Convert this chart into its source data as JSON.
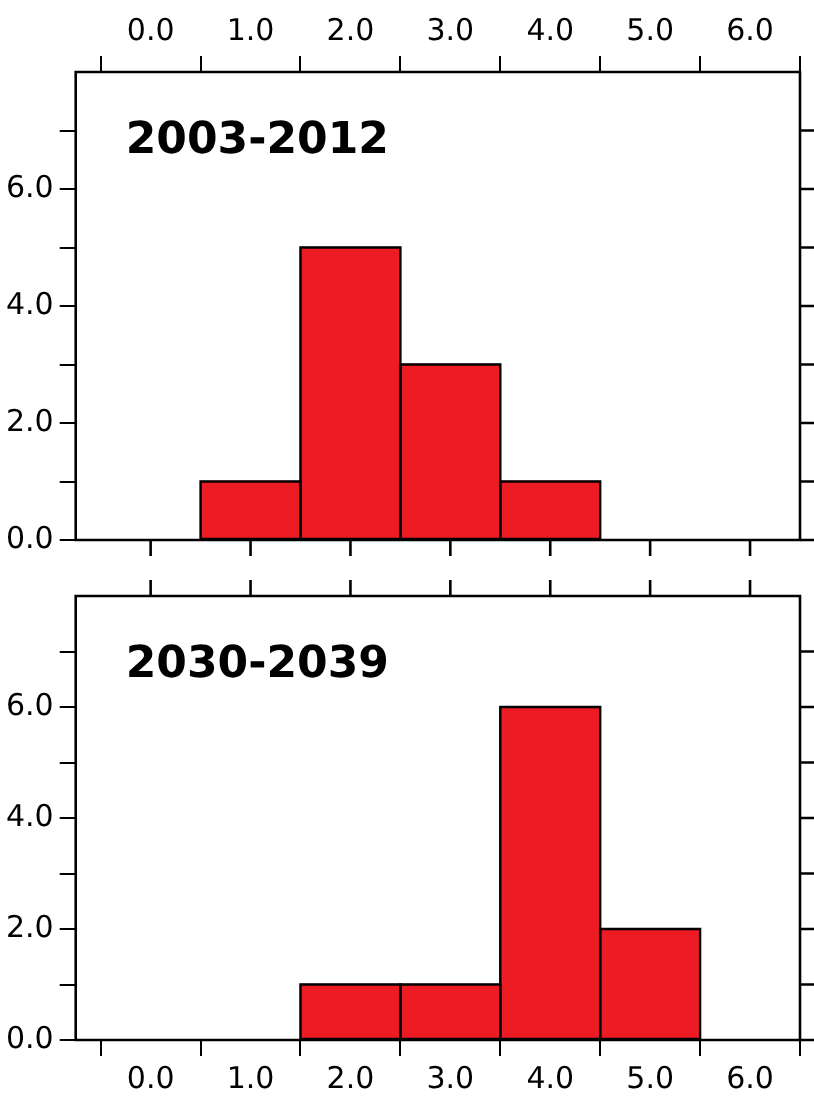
{
  "chart_data": [
    {
      "type": "histogram",
      "title": "2003-2012",
      "bins": [
        0.5,
        1.5,
        2.5,
        3.5,
        4.5
      ],
      "values": [
        1,
        5,
        3,
        1
      ],
      "color": "#ed1c24",
      "xlim": [
        -0.75,
        6.5
      ],
      "xticks": [
        {
          "value": 0,
          "label": "0.0"
        },
        {
          "value": 1,
          "label": "1.0"
        },
        {
          "value": 2,
          "label": "2.0"
        },
        {
          "value": 3,
          "label": "3.0"
        },
        {
          "value": 4,
          "label": "4.0"
        },
        {
          "value": 5,
          "label": "5.0"
        },
        {
          "value": 6,
          "label": "6.0"
        }
      ],
      "ylim": [
        0,
        8
      ],
      "yticks": [
        {
          "value": 0,
          "label": "0.0"
        },
        {
          "value": 1,
          "label": null
        },
        {
          "value": 2,
          "label": "2.0"
        },
        {
          "value": 3,
          "label": null
        },
        {
          "value": 4,
          "label": "4.0"
        },
        {
          "value": 5,
          "label": null
        },
        {
          "value": 6,
          "label": "6.0"
        },
        {
          "value": 7,
          "label": null
        }
      ],
      "grid": false,
      "legend": false
    },
    {
      "type": "histogram",
      "title": "2030-2039",
      "bins": [
        1.5,
        2.5,
        3.5,
        4.5,
        5.5
      ],
      "values": [
        1,
        1,
        6,
        2
      ],
      "color": "#ed1c24",
      "xlim": [
        -0.75,
        6.5
      ],
      "xticks": [
        {
          "value": 0,
          "label": "0.0"
        },
        {
          "value": 1,
          "label": "1.0"
        },
        {
          "value": 2,
          "label": "2.0"
        },
        {
          "value": 3,
          "label": "3.0"
        },
        {
          "value": 4,
          "label": "4.0"
        },
        {
          "value": 5,
          "label": "5.0"
        },
        {
          "value": 6,
          "label": "6.0"
        }
      ],
      "ylim": [
        0,
        8
      ],
      "yticks": [
        {
          "value": 0,
          "label": "0.0"
        },
        {
          "value": 1,
          "label": null
        },
        {
          "value": 2,
          "label": "2.0"
        },
        {
          "value": 3,
          "label": null
        },
        {
          "value": 4,
          "label": "4.0"
        },
        {
          "value": 5,
          "label": null
        },
        {
          "value": 6,
          "label": "6.0"
        },
        {
          "value": 7,
          "label": null
        }
      ],
      "grid": false,
      "legend": false
    }
  ]
}
